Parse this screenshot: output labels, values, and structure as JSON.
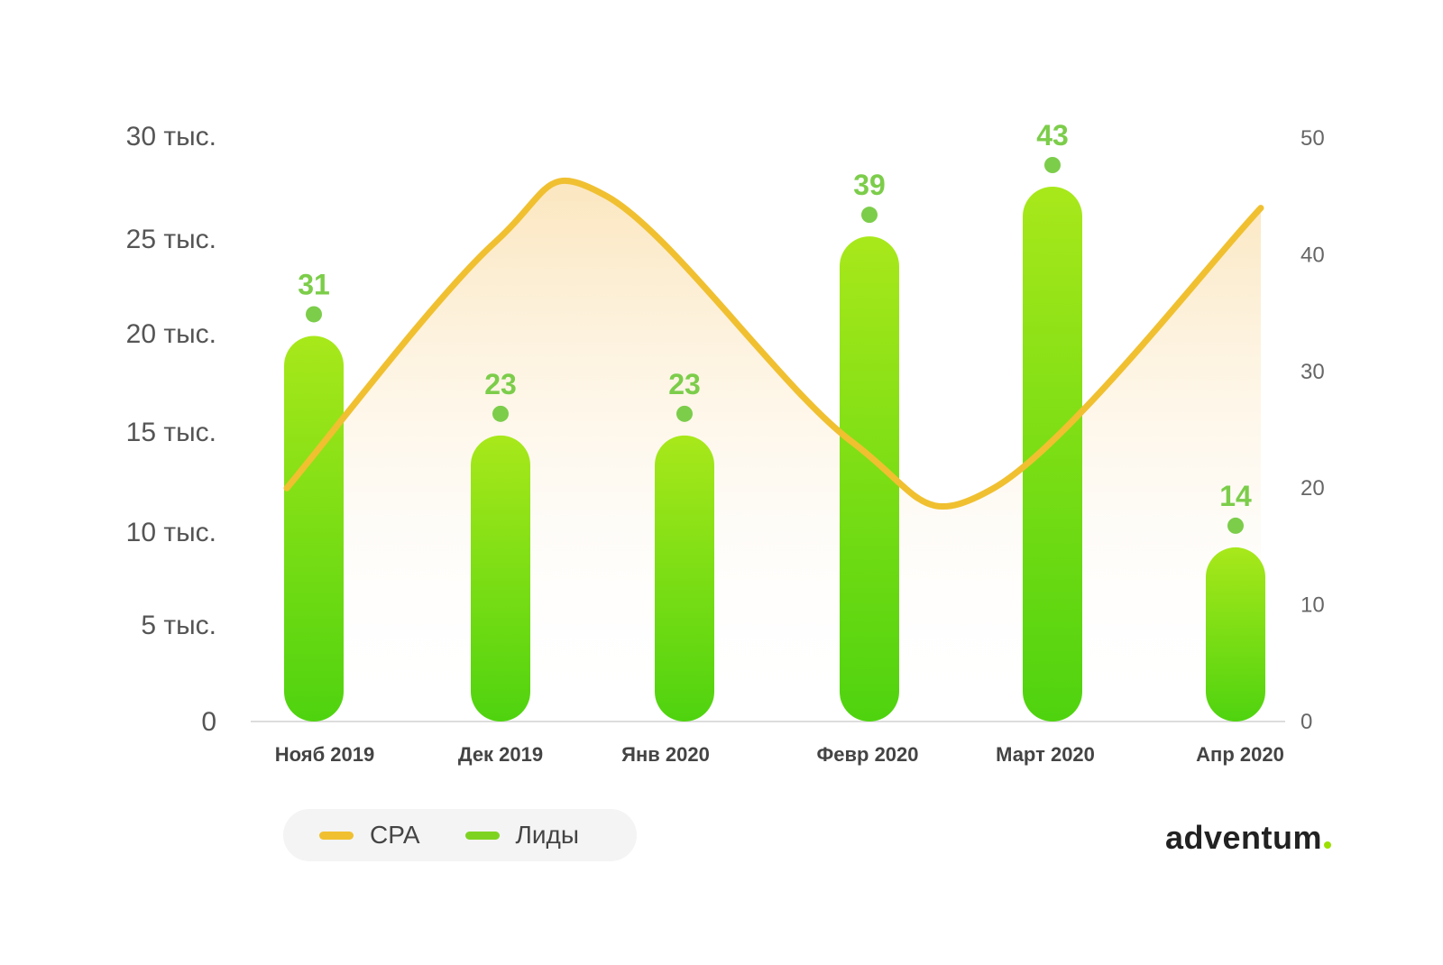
{
  "chart_data": {
    "type": "bar",
    "categories": [
      "Нояб 2019",
      "Дек 2019",
      "Янв 2020",
      "Февр 2020",
      "Март 2020",
      "Апр 2020"
    ],
    "series": [
      {
        "name": "Лиды",
        "type": "bar",
        "axis": "left",
        "values": [
          31,
          23,
          23,
          39,
          43,
          14
        ],
        "color": "#7ed321"
      },
      {
        "name": "CPA",
        "type": "line",
        "axis": "right",
        "values": [
          20,
          41,
          45,
          24,
          20,
          44
        ],
        "color": "#f0c030"
      }
    ],
    "y_left_ticks": [
      "0",
      "5 тыс.",
      "10 тыс.",
      "15 тыс.",
      "20 тыс.",
      "25 тыс.",
      "30 тыс."
    ],
    "y_left_range": [
      0,
      30000
    ],
    "y_right_ticks": [
      "0",
      "10",
      "20",
      "30",
      "40",
      "50"
    ],
    "y_right_range": [
      0,
      50
    ],
    "data_labels": [
      "31",
      "23",
      "23",
      "39",
      "43",
      "14"
    ],
    "grid": false,
    "legend_position": "bottom-left"
  },
  "legend": [
    {
      "label": "CPA",
      "color": "#f0c030"
    },
    {
      "label": "Лиды",
      "color": "#7ed321"
    }
  ],
  "logo": {
    "text": "adventum"
  },
  "colors": {
    "bar_top": "#a8e81a",
    "bar_bottom": "#4fd30f",
    "line": "#f0c030",
    "label": "#7ccd4a",
    "axis": "#dddddd"
  }
}
